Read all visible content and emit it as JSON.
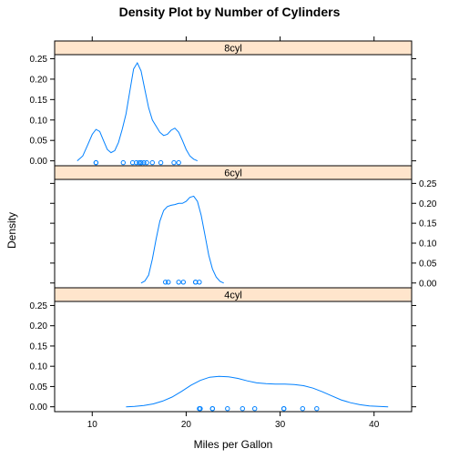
{
  "chart_data": {
    "type": "line",
    "title": "Density Plot by Number of Cylinders",
    "xlabel": "Miles per Gallon",
    "ylabel": "Density",
    "xlim": [
      6,
      44
    ],
    "ylim": [
      -0.012,
      0.26
    ],
    "x_ticks": [
      10,
      20,
      30,
      40
    ],
    "y_ticks": [
      0.0,
      0.05,
      0.1,
      0.15,
      0.2,
      0.25
    ],
    "y_tick_labels": [
      "0.00",
      "0.05",
      "0.10",
      "0.15",
      "0.20",
      "0.25"
    ],
    "panels": [
      {
        "label": "8cyl",
        "axis_side": "left",
        "curve": {
          "x": [
            8.4,
            9.0,
            9.5,
            10.0,
            10.4,
            10.8,
            11.2,
            11.6,
            12.0,
            12.4,
            12.8,
            13.2,
            13.6,
            14.0,
            14.4,
            14.8,
            15.2,
            15.6,
            16.0,
            16.4,
            16.8,
            17.2,
            17.6,
            18.0,
            18.4,
            18.8,
            19.2,
            19.6,
            20.0,
            20.4,
            20.8,
            21.2
          ],
          "y": [
            0.0,
            0.012,
            0.038,
            0.065,
            0.077,
            0.072,
            0.05,
            0.028,
            0.02,
            0.025,
            0.045,
            0.078,
            0.115,
            0.17,
            0.225,
            0.24,
            0.22,
            0.175,
            0.13,
            0.1,
            0.085,
            0.07,
            0.062,
            0.065,
            0.075,
            0.08,
            0.07,
            0.05,
            0.028,
            0.012,
            0.004,
            0.0
          ]
        },
        "points": [
          10.4,
          10.4,
          13.3,
          14.3,
          14.7,
          15.0,
          15.2,
          15.2,
          15.5,
          15.8,
          16.4,
          17.3,
          18.7,
          19.2
        ]
      },
      {
        "label": "6cyl",
        "axis_side": "right",
        "curve": {
          "x": [
            15.2,
            15.6,
            16.0,
            16.4,
            16.8,
            17.2,
            17.6,
            18.0,
            18.4,
            18.8,
            19.2,
            19.6,
            20.0,
            20.4,
            20.8,
            21.2,
            21.6,
            22.0,
            22.4,
            22.8,
            23.2,
            23.6,
            24.0
          ],
          "y": [
            0.0,
            0.005,
            0.02,
            0.06,
            0.11,
            0.155,
            0.182,
            0.192,
            0.195,
            0.197,
            0.2,
            0.2,
            0.205,
            0.215,
            0.218,
            0.205,
            0.17,
            0.12,
            0.07,
            0.035,
            0.015,
            0.004,
            0.0
          ]
        },
        "points": [
          17.8,
          18.1,
          19.2,
          19.7,
          21.0,
          21.0,
          21.4
        ]
      },
      {
        "label": "4cyl",
        "axis_side": "left",
        "curve": {
          "x": [
            13.6,
            14.5,
            15.5,
            16.5,
            17.5,
            18.5,
            19.5,
            20.5,
            21.5,
            22.5,
            23.5,
            24.5,
            25.5,
            26.5,
            27.5,
            28.5,
            29.5,
            30.5,
            31.5,
            32.5,
            33.5,
            34.5,
            35.5,
            36.5,
            37.5,
            38.5,
            39.5,
            40.5,
            41.5
          ],
          "y": [
            0.0,
            0.001,
            0.003,
            0.007,
            0.014,
            0.024,
            0.038,
            0.053,
            0.065,
            0.073,
            0.075,
            0.074,
            0.07,
            0.064,
            0.059,
            0.057,
            0.056,
            0.056,
            0.055,
            0.052,
            0.046,
            0.037,
            0.027,
            0.017,
            0.01,
            0.005,
            0.002,
            0.001,
            0.0
          ]
        },
        "points": [
          21.4,
          21.5,
          22.8,
          22.8,
          24.4,
          26.0,
          27.3,
          30.4,
          30.4,
          32.4,
          33.9
        ]
      }
    ]
  }
}
